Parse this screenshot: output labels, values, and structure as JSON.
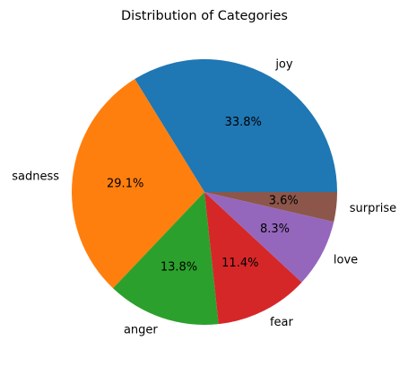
{
  "chart_data": {
    "type": "pie",
    "title": "Distribution of Categories",
    "start_angle_deg": 0,
    "direction": "counterclockwise",
    "legend": "none",
    "slices": [
      {
        "label": "joy",
        "value": 33.8,
        "pct_label": "33.8%",
        "color": "#1f77b4"
      },
      {
        "label": "sadness",
        "value": 29.1,
        "pct_label": "29.1%",
        "color": "#ff7f0e"
      },
      {
        "label": "anger",
        "value": 13.8,
        "pct_label": "13.8%",
        "color": "#2ca02c"
      },
      {
        "label": "fear",
        "value": 11.4,
        "pct_label": "11.4%",
        "color": "#d62728"
      },
      {
        "label": "love",
        "value": 8.3,
        "pct_label": "8.3%",
        "color": "#9467bd"
      },
      {
        "label": "surprise",
        "value": 3.6,
        "pct_label": "3.6%",
        "color": "#8c564b"
      }
    ]
  }
}
